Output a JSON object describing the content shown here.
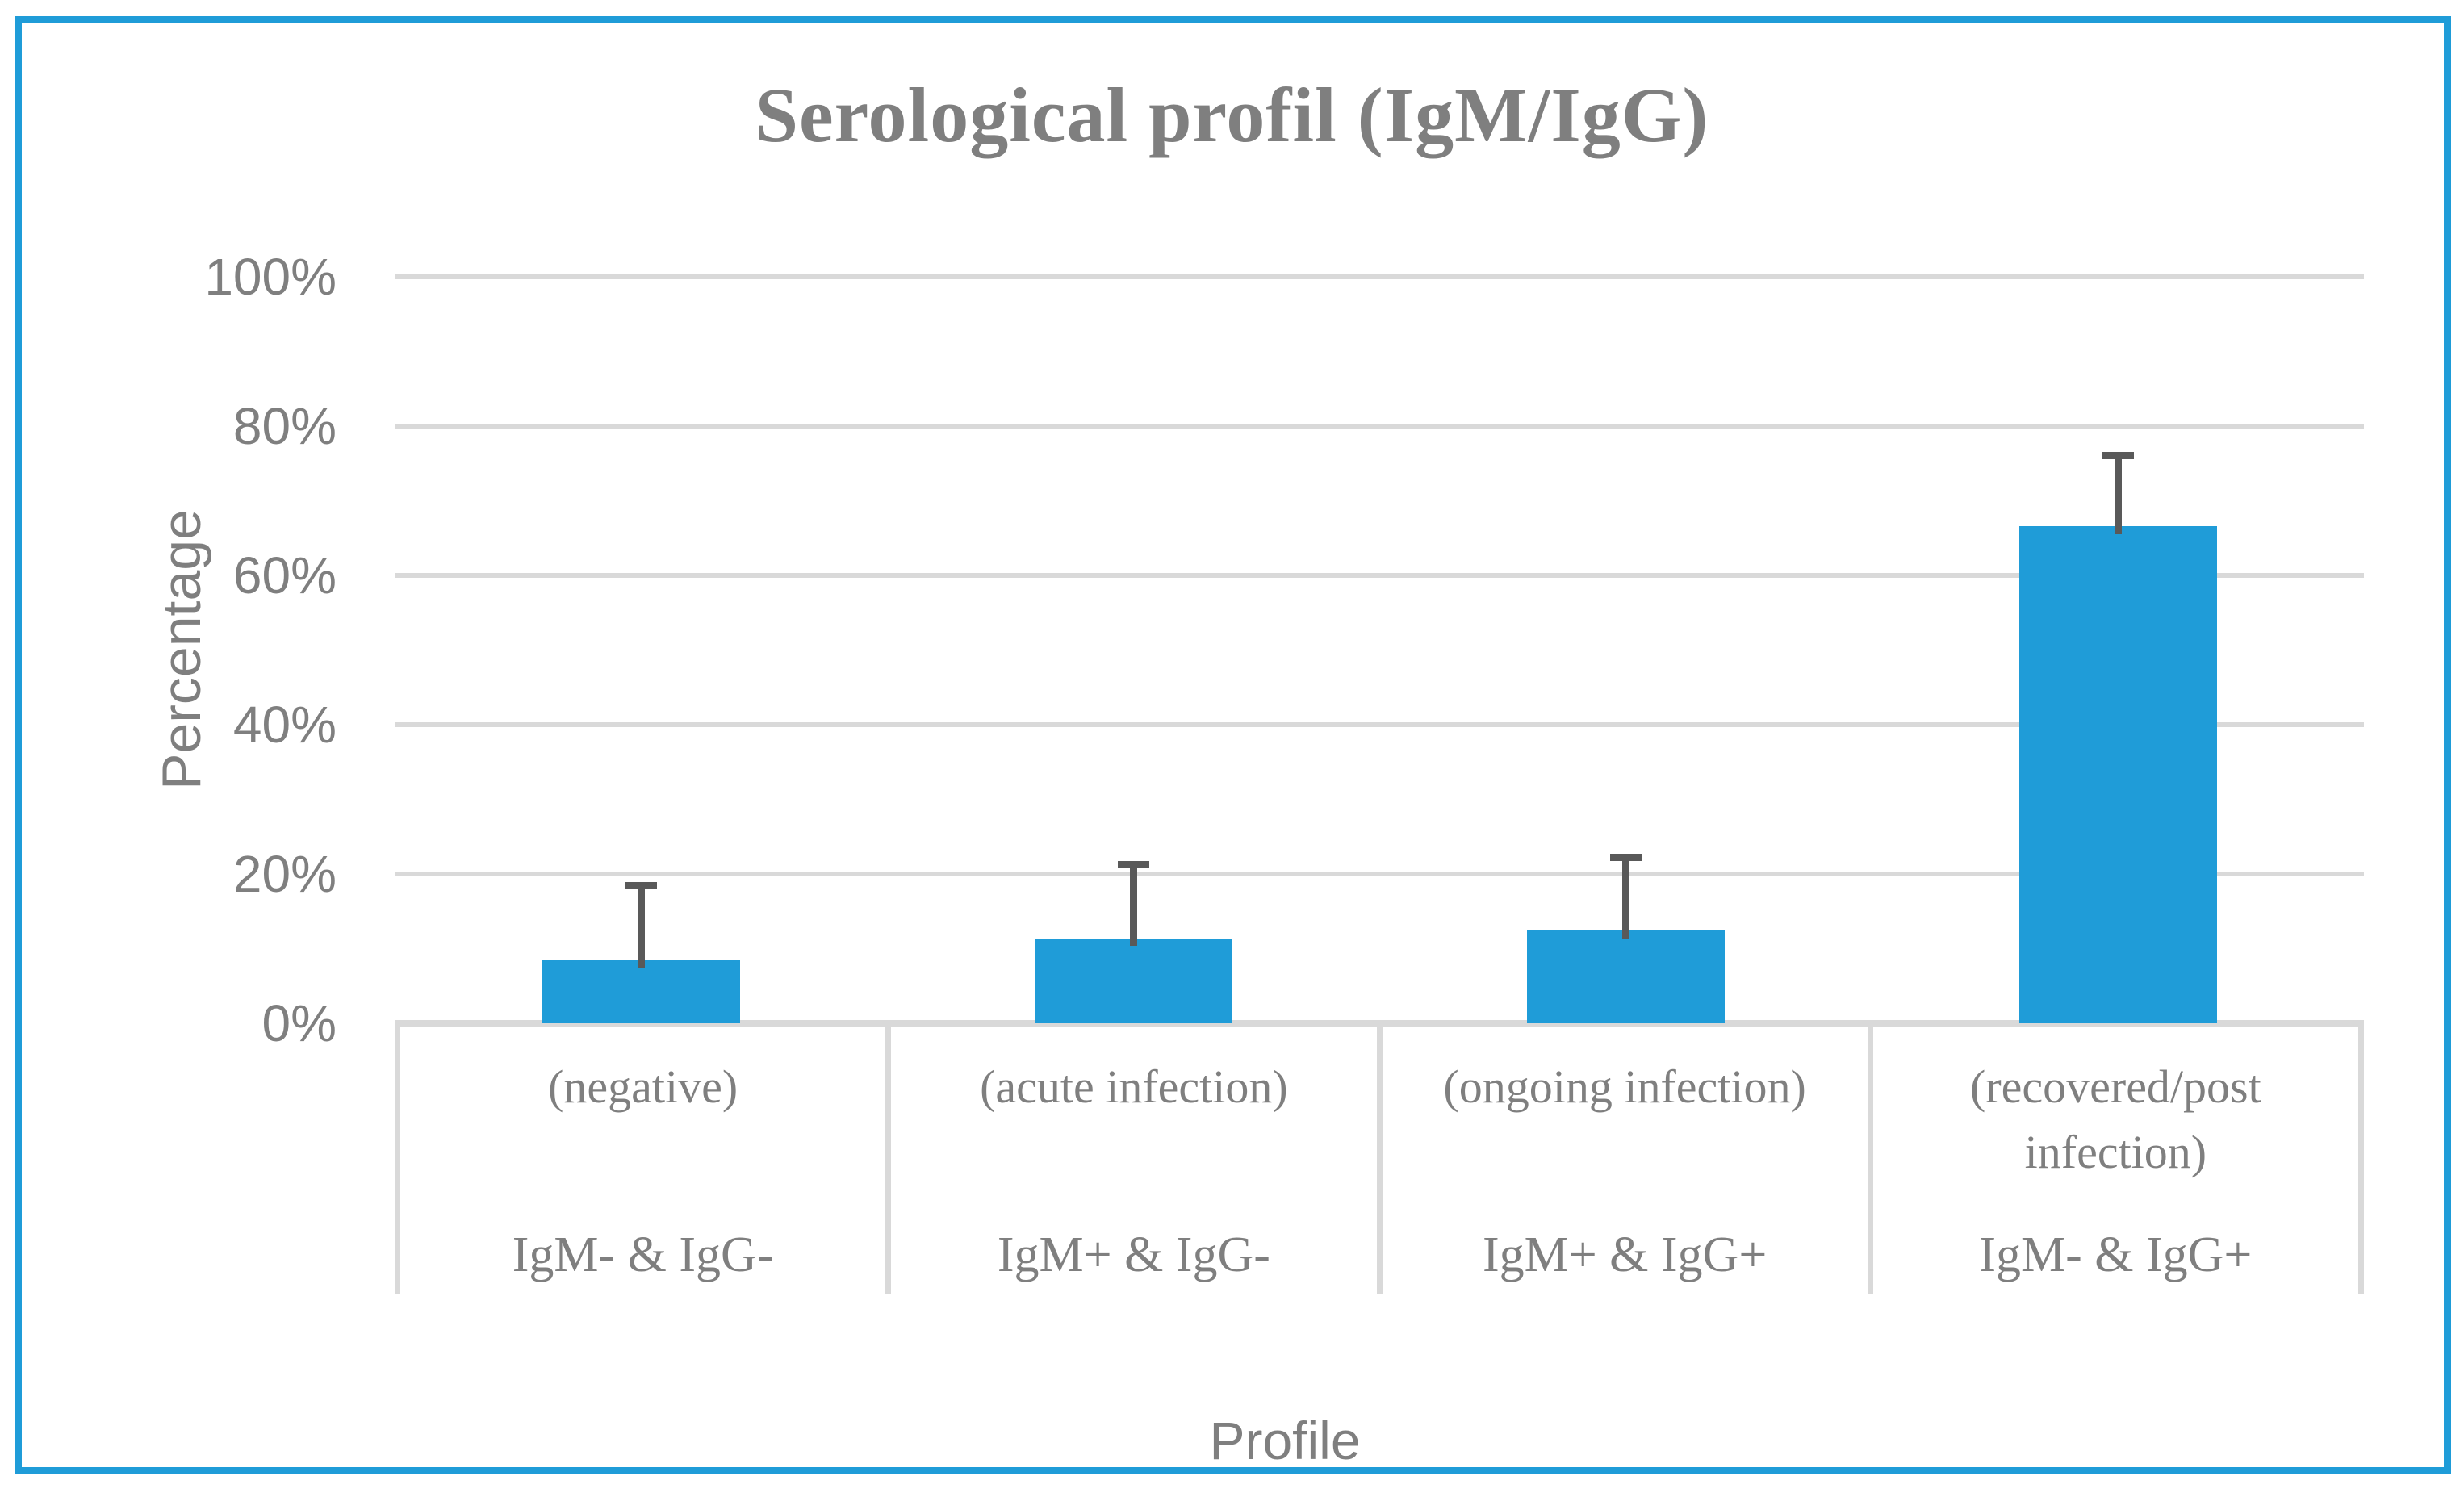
{
  "chart_data": {
    "type": "bar",
    "title": "Serological profil (IgM/IgG)",
    "xlabel": "Profile",
    "ylabel": "Percentage",
    "ylim": [
      0,
      100
    ],
    "grid": true,
    "legend": false,
    "yticks": [
      {
        "value": 0,
        "label": "0%"
      },
      {
        "value": 20,
        "label": "20%"
      },
      {
        "value": 40,
        "label": "40%"
      },
      {
        "value": 60,
        "label": "60%"
      },
      {
        "value": 80,
        "label": "80%"
      },
      {
        "value": 100,
        "label": "100%"
      }
    ],
    "categories": [
      "IgM- & IgG-",
      "IgM+ & IgG-",
      "IgM+ & IgG+",
      "IgM- & IgG+"
    ],
    "category_subtitles": [
      "(negative)",
      "(acute infection)",
      "(ongoing infection)",
      "(recovered/post infection)"
    ],
    "values": [
      8.5,
      11.4,
      12.4,
      66.6
    ],
    "error_upper": [
      10.4,
      10.3,
      10.3,
      9.9
    ],
    "bar_color": "#1f9cd8",
    "gridline_color": "#d9d9d9",
    "error_bar_color": "#595959",
    "text_color": "#7f7f7f",
    "frame_border_color": "#1f9cd8"
  }
}
